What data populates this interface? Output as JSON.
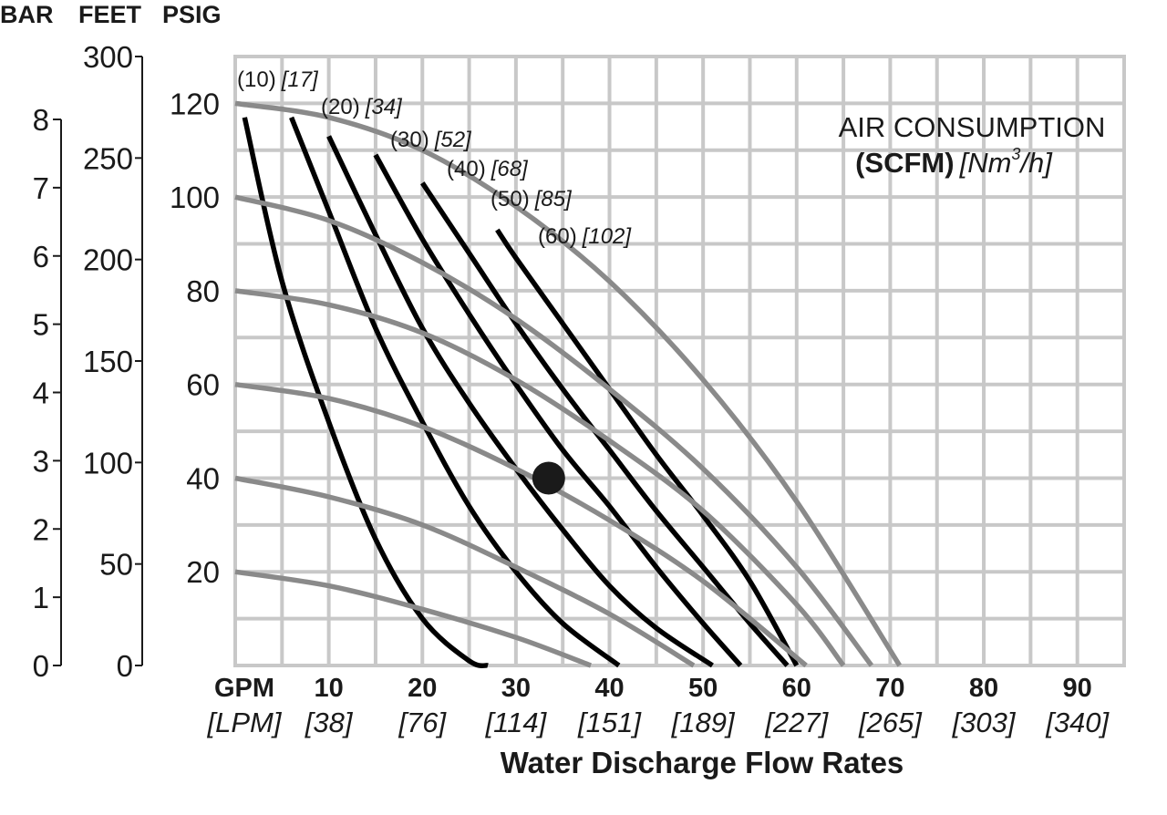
{
  "chart_data": {
    "type": "line",
    "title": "",
    "xlabel": "Water Discharge Flow Rates",
    "axis_headers": [
      "BAR",
      "FEET",
      "PSIG"
    ],
    "x_axis": {
      "unit_label": "GPM",
      "unit_label_alt": "[LPM]",
      "ticks": [
        10,
        20,
        30,
        40,
        50,
        60,
        70,
        80,
        90
      ],
      "tick_labels": [
        "10",
        "20",
        "30",
        "40",
        "50",
        "60",
        "70",
        "80",
        "90"
      ],
      "tick_labels_alt": [
        "[38]",
        "[76]",
        "[114]",
        "[151]",
        "[189]",
        "[227]",
        "[265]",
        "[303]",
        "[340]"
      ],
      "range": [
        0,
        95
      ]
    },
    "y_axes": {
      "psig": {
        "ticks": [
          20,
          40,
          60,
          80,
          100,
          120
        ],
        "range": [
          0,
          130
        ]
      },
      "feet": {
        "ticks": [
          0,
          50,
          100,
          150,
          200,
          250,
          300
        ],
        "range": [
          0,
          300
        ]
      },
      "bar": {
        "ticks": [
          0,
          1,
          2,
          3,
          4,
          5,
          6,
          7,
          8
        ],
        "range": [
          0,
          8
        ]
      }
    },
    "grid": true,
    "legend": {
      "title": "AIR CONSUMPTION",
      "units_bold": "(SCFM)",
      "units_alt": "[Nm",
      "units_alt_sup": "3",
      "units_alt_end": "/h]"
    },
    "series": [
      {
        "kind": "air_pressure",
        "psig": 20,
        "x": [
          0,
          10,
          20,
          30,
          38
        ],
        "y": [
          20,
          17,
          12,
          6,
          0
        ]
      },
      {
        "kind": "air_pressure",
        "psig": 40,
        "x": [
          0,
          10,
          20,
          30,
          40,
          49
        ],
        "y": [
          40,
          36,
          30,
          21,
          11,
          0
        ]
      },
      {
        "kind": "air_pressure",
        "psig": 60,
        "x": [
          0,
          10,
          20,
          30,
          40,
          50,
          61
        ],
        "y": [
          60,
          57,
          51,
          42,
          31,
          18,
          0
        ]
      },
      {
        "kind": "air_pressure",
        "psig": 80,
        "x": [
          0,
          10,
          20,
          30,
          40,
          50,
          60,
          65
        ],
        "y": [
          80,
          77,
          71,
          61,
          48,
          33,
          13,
          0
        ]
      },
      {
        "kind": "air_pressure",
        "psig": 100,
        "x": [
          0,
          10,
          20,
          30,
          40,
          50,
          60,
          68
        ],
        "y": [
          100,
          95,
          86,
          74,
          59,
          42,
          21,
          0
        ]
      },
      {
        "kind": "air_pressure",
        "psig": 120,
        "x": [
          0,
          10,
          20,
          30,
          40,
          50,
          60,
          71
        ],
        "y": [
          120,
          117,
          110,
          98,
          82,
          61,
          35,
          0
        ]
      },
      {
        "kind": "air_consumption",
        "label": "(10)",
        "label_alt": "[17]",
        "x": [
          1,
          5,
          10,
          15,
          20,
          25,
          27
        ],
        "y": [
          117,
          82,
          52,
          27,
          10,
          1,
          0
        ]
      },
      {
        "kind": "air_consumption",
        "label": "(20)",
        "label_alt": "[34]",
        "x": [
          6,
          10,
          15,
          20,
          25,
          30,
          35,
          41
        ],
        "y": [
          117,
          97,
          72,
          52,
          34,
          20,
          9,
          0
        ]
      },
      {
        "kind": "air_consumption",
        "label": "(30)",
        "label_alt": "[52]",
        "x": [
          10,
          15,
          20,
          25,
          30,
          35,
          40,
          45,
          51
        ],
        "y": [
          113,
          92,
          72,
          56,
          42,
          29,
          17,
          8,
          0
        ]
      },
      {
        "kind": "air_consumption",
        "label": "(40)",
        "label_alt": "[68]",
        "x": [
          15,
          20,
          25,
          30,
          35,
          40,
          45,
          50,
          54
        ],
        "y": [
          109,
          91,
          75,
          60,
          46,
          34,
          21,
          9,
          0
        ]
      },
      {
        "kind": "air_consumption",
        "label": "(50)",
        "label_alt": "[85]",
        "x": [
          20,
          25,
          30,
          35,
          40,
          45,
          50,
          55,
          59
        ],
        "y": [
          103,
          88,
          73,
          59,
          46,
          33,
          21,
          9,
          0
        ]
      },
      {
        "kind": "air_consumption",
        "label": "(60)",
        "label_alt": "[102]",
        "x": [
          28,
          30,
          35,
          40,
          45,
          50,
          55,
          60
        ],
        "y": [
          93,
          87,
          73,
          59,
          45,
          32,
          18,
          0
        ]
      }
    ],
    "marker": {
      "x": 33.5,
      "y": 40
    }
  }
}
